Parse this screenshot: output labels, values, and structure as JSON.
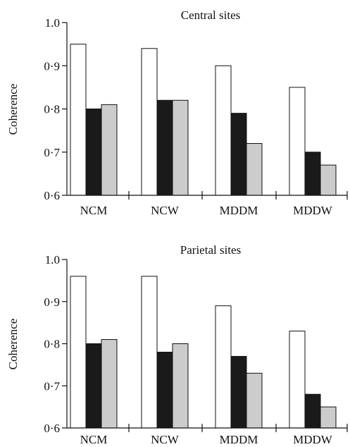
{
  "chart_data": [
    {
      "type": "bar",
      "title": "Central sites",
      "ylabel": "Coherence",
      "ylim": [
        0.6,
        1.0
      ],
      "yticks": [
        {
          "value": 0.6,
          "label": "0·6"
        },
        {
          "value": 0.7,
          "label": "0·7"
        },
        {
          "value": 0.8,
          "label": "0·8"
        },
        {
          "value": 0.9,
          "label": "0·9"
        },
        {
          "value": 1.0,
          "label": "1.0"
        }
      ],
      "categories": [
        "NCM",
        "NCW",
        "MDDM",
        "MDDW"
      ],
      "series": [
        {
          "color": "#ffffff",
          "values": [
            0.95,
            0.94,
            0.9,
            0.85
          ]
        },
        {
          "color": "#1a1a1a",
          "values": [
            0.8,
            0.82,
            0.79,
            0.7
          ]
        },
        {
          "color": "#cccccc",
          "values": [
            0.81,
            0.82,
            0.72,
            0.67
          ]
        }
      ],
      "grid": false,
      "legend": "none"
    },
    {
      "type": "bar",
      "title": "Parietal sites",
      "ylabel": "Coherence",
      "ylim": [
        0.6,
        1.0
      ],
      "yticks": [
        {
          "value": 0.6,
          "label": "0·6"
        },
        {
          "value": 0.7,
          "label": "0·7"
        },
        {
          "value": 0.8,
          "label": "0·8"
        },
        {
          "value": 0.9,
          "label": "0·9"
        },
        {
          "value": 1.0,
          "label": "1.0"
        }
      ],
      "categories": [
        "NCM",
        "NCW",
        "MDDM",
        "MDDW"
      ],
      "series": [
        {
          "color": "#ffffff",
          "values": [
            0.96,
            0.96,
            0.89,
            0.83
          ]
        },
        {
          "color": "#1a1a1a",
          "values": [
            0.8,
            0.78,
            0.77,
            0.68
          ]
        },
        {
          "color": "#cccccc",
          "values": [
            0.81,
            0.8,
            0.73,
            0.65
          ]
        }
      ],
      "grid": false,
      "legend": "none"
    }
  ]
}
